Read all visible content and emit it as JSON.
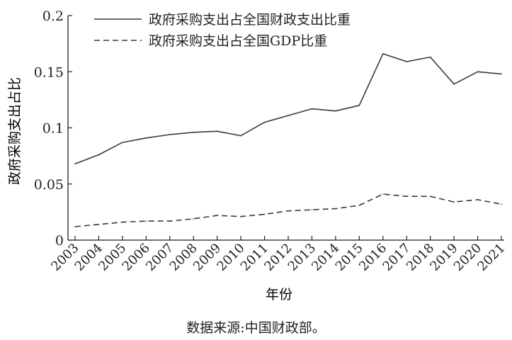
{
  "chart_data": {
    "type": "line",
    "title": "",
    "xlabel": "年份",
    "ylabel": "政府采购支出占比",
    "ylim": [
      0,
      0.2
    ],
    "yticks": [
      "0",
      "0.05",
      "0.1",
      "0.15",
      "0.2"
    ],
    "grid": false,
    "legend": "top-left",
    "x": [
      "2003",
      "2004",
      "2005",
      "2006",
      "2007",
      "2008",
      "2009",
      "2010",
      "2011",
      "2012",
      "2013",
      "2014",
      "2015",
      "2016",
      "2017",
      "2018",
      "2019",
      "2020",
      "2021"
    ],
    "series": [
      {
        "name": "政府采购支出占全国财政支出比重",
        "style": "solid",
        "color": "#3a3a3a",
        "values": [
          0.068,
          0.076,
          0.087,
          0.091,
          0.094,
          0.096,
          0.097,
          0.093,
          0.105,
          0.111,
          0.117,
          0.115,
          0.12,
          0.166,
          0.159,
          0.163,
          0.139,
          0.15,
          0.148
        ]
      },
      {
        "name": "政府采购支出占全国GDP比重",
        "style": "dashed",
        "color": "#3a3a3a",
        "values": [
          0.012,
          0.014,
          0.016,
          0.017,
          0.017,
          0.019,
          0.022,
          0.021,
          0.023,
          0.026,
          0.027,
          0.028,
          0.031,
          0.041,
          0.039,
          0.039,
          0.034,
          0.036,
          0.032
        ]
      }
    ]
  },
  "source_text": "数据来源:中国财政部。"
}
